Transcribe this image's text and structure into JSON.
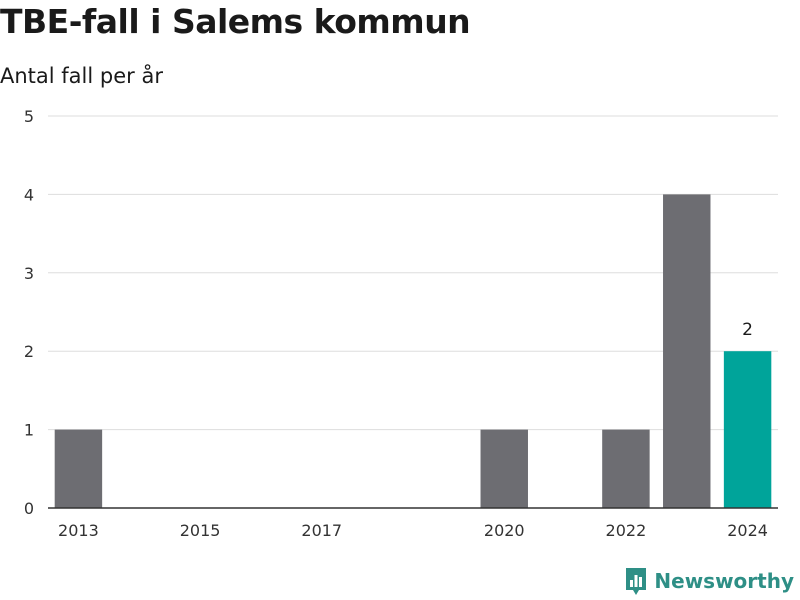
{
  "header": {
    "title": "TBE-fall i Salems kommun",
    "subtitle": "Antal fall per år"
  },
  "brand": {
    "name": "Newsworthy",
    "icon": "newsworthy-logo-icon"
  },
  "colors": {
    "bar": "#6d6d72",
    "highlight": "#00a49a",
    "grid": "#dddddd",
    "axis": "#333333",
    "brand": "#2e8f86"
  },
  "chart_data": {
    "type": "bar",
    "title": "TBE-fall i Salems kommun",
    "subtitle": "Antal fall per år",
    "xlabel": "",
    "ylabel": "",
    "categories": [
      "2013",
      "2014",
      "2015",
      "2016",
      "2017",
      "2018",
      "2019",
      "2020",
      "2021",
      "2022",
      "2023",
      "2024"
    ],
    "values": [
      1,
      0,
      0,
      0,
      0,
      0,
      0,
      1,
      0,
      1,
      4,
      2
    ],
    "highlight_category": "2024",
    "data_labels": [
      {
        "category": "2024",
        "text": "2"
      }
    ],
    "x_tick_labels": [
      "2013",
      "2015",
      "2017",
      "2020",
      "2022",
      "2024"
    ],
    "y_ticks": [
      "0",
      "1",
      "2",
      "3",
      "4",
      "5"
    ],
    "ylim": [
      0,
      5
    ],
    "grid": true,
    "legend": "none"
  }
}
